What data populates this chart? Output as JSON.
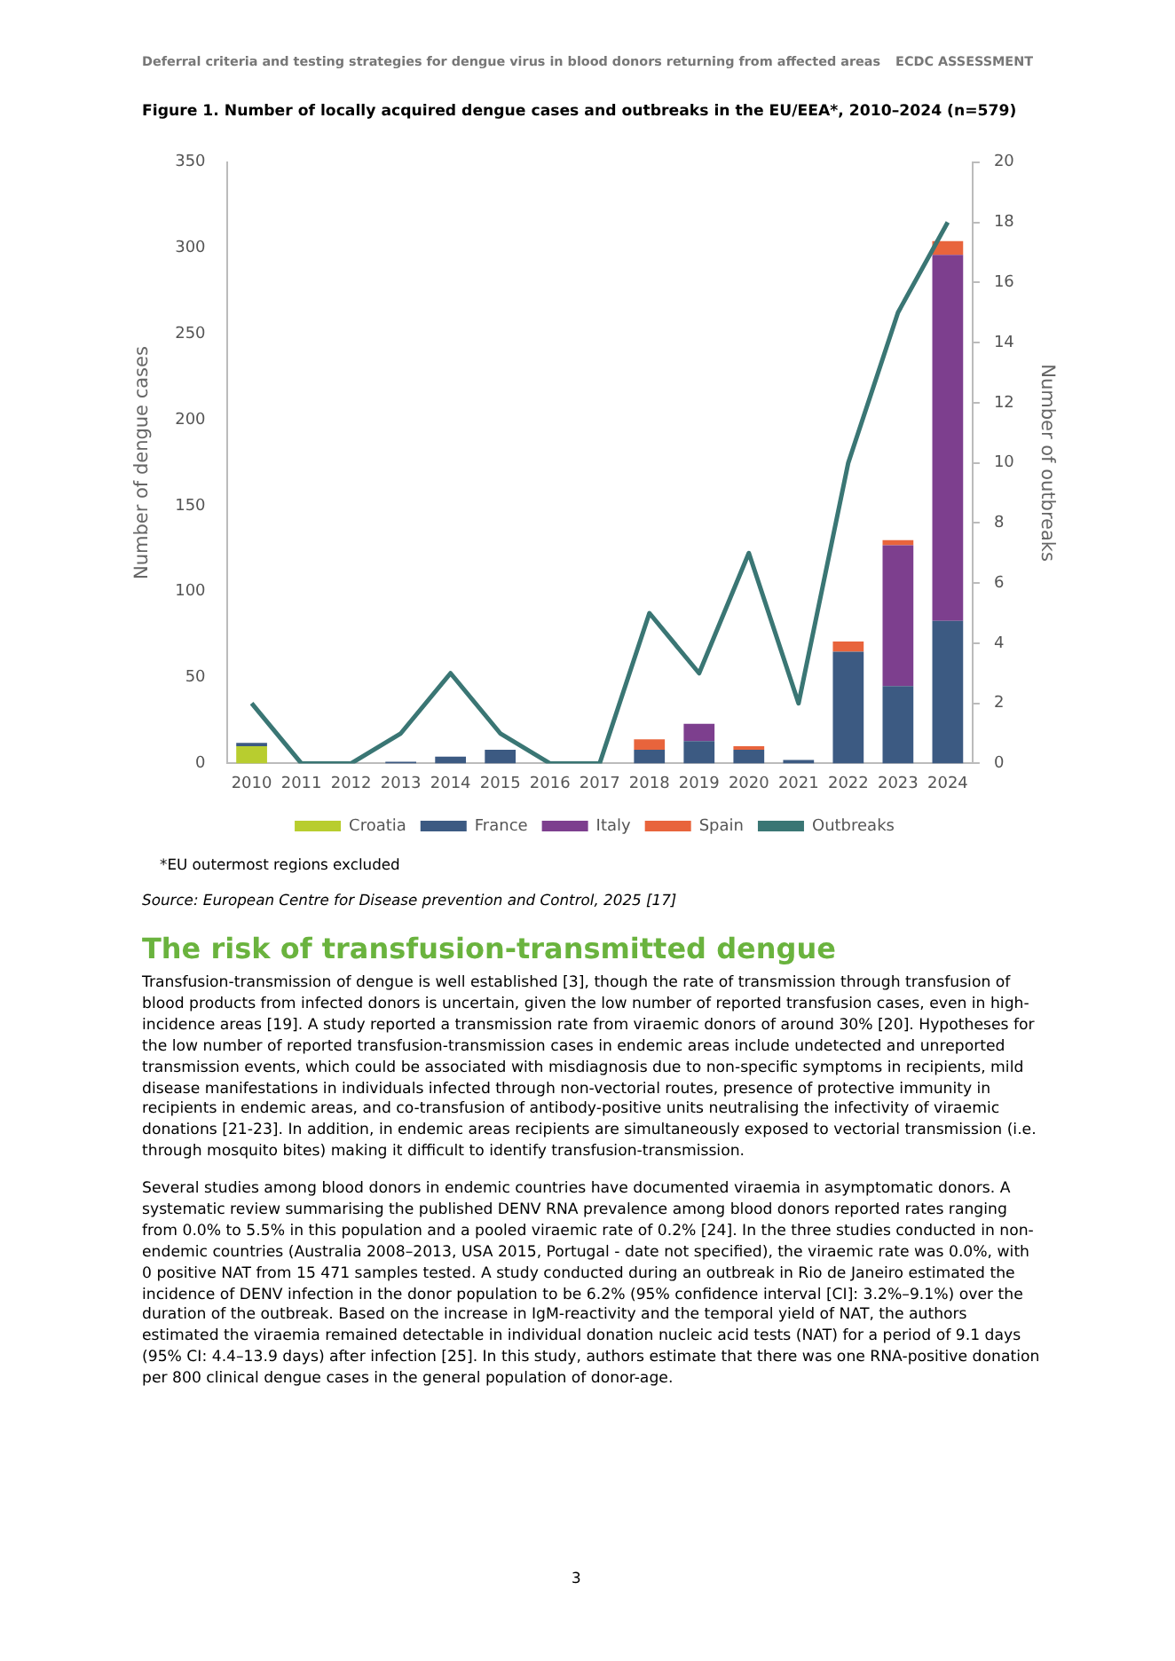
{
  "chart_data": {
    "type": "bar",
    "title": "Figure 1. Number of locally acquired dengue cases and outbreaks in the EU/EEA*, 2010–2024 (n=579)",
    "categories": [
      "2010",
      "2011",
      "2012",
      "2013",
      "2014",
      "2015",
      "2016",
      "2017",
      "2018",
      "2019",
      "2020",
      "2021",
      "2022",
      "2023",
      "2024"
    ],
    "stacked": true,
    "series": [
      {
        "name": "Croatia",
        "color": "#b8cd2f",
        "values": [
          10,
          0,
          0,
          0,
          0,
          0,
          0,
          0,
          0,
          0,
          0,
          0,
          0,
          0,
          0
        ]
      },
      {
        "name": "France",
        "color": "#3c5a82",
        "values": [
          2,
          0,
          0,
          1,
          4,
          8,
          0,
          0,
          8,
          13,
          8,
          2,
          65,
          45,
          83
        ]
      },
      {
        "name": "Italy",
        "color": "#7d3f8e",
        "values": [
          0,
          0,
          0,
          0,
          0,
          0,
          0,
          0,
          0,
          10,
          0,
          0,
          0,
          82,
          213
        ]
      },
      {
        "name": "Spain",
        "color": "#e8643c",
        "values": [
          0,
          0,
          0,
          0,
          0,
          0,
          0,
          0,
          6,
          0,
          2,
          0,
          6,
          3,
          8
        ]
      },
      {
        "name": "Outbreaks",
        "type": "line",
        "axis": "y2",
        "color": "#3a7674",
        "values": [
          2,
          0,
          0,
          1,
          3,
          1,
          0,
          0,
          5,
          3,
          7,
          2,
          10,
          15,
          18
        ]
      }
    ],
    "ylabel": "Number of dengue cases",
    "y2label": "Number of outbreaks",
    "ylim": [
      0,
      350
    ],
    "yticks": [
      0,
      50,
      100,
      150,
      200,
      250,
      300,
      350
    ],
    "y2lim": [
      0,
      20
    ],
    "y2ticks": [
      0,
      2,
      4,
      6,
      8,
      10,
      12,
      14,
      16,
      18,
      20
    ],
    "grid": false,
    "legend": "bottom",
    "marker": "none",
    "line_style": "solid",
    "annotations": [
      "Deferral criteria and testing strategies for dengue virus in blood donors returning from affected areas",
      "ECDC ASSESSMENT",
      "*EU outermost regions excluded",
      "Source: European Centre for Disease prevention and Control, 2025 [17]",
      "The risk of transfusion-transmitted dengue",
      "Transfusion-transmission of dengue is well established [3], though the rate of transmission through transfusion of blood products from infected donors is uncertain, given the low number of reported transfusion cases, even in high-incidence areas [19]. A study reported a transmission rate from viraemic donors of around 30% [20]. Hypotheses for the low number of reported transfusion-transmission cases in endemic areas include undetected and unreported transmission events, which could be associated with misdiagnosis due to non-specific symptoms in recipients, mild disease manifestations in individuals infected through non-vectorial routes, presence of protective immunity in recipients in endemic areas, and co-transfusion of antibody-positive units neutralising the infectivity of viraemic donations [21-23]. In addition, in endemic areas recipients are simultaneously exposed to vectorial transmission (i.e. through mosquito bites) making it difficult to identify transfusion-transmission.",
      "Several studies among blood donors in endemic countries have documented viraemia in asymptomatic donors. A systematic review summarising the published DENV RNA prevalence among blood donors reported rates ranging from 0.0% to 5.5% in this population and a pooled viraemic rate of 0.2% [24]. In the three studies conducted in non-endemic countries (Australia 2008–2013, USA 2015, Portugal - date not specified), the viraemic rate was 0.0%, with 0 positive NAT from 15 471 samples tested. A study conducted during an outbreak in Rio de Janeiro estimated the incidence of DENV infection in the donor population to be 6.2% (95% confidence interval [CI]: 3.2%–9.1%) over the duration of the outbreak. Based on the increase in IgM-reactivity and the temporal yield of NAT, the authors estimated the viraemia remained detectable in individual donation nucleic acid tests (NAT) for a period of 9.1 days (95% CI: 4.4–13.9 days) after infection [25]. In this study, authors estimate that there was one RNA-positive donation per 800 clinical dengue cases in the general population of donor-age.",
      "3"
    ]
  }
}
